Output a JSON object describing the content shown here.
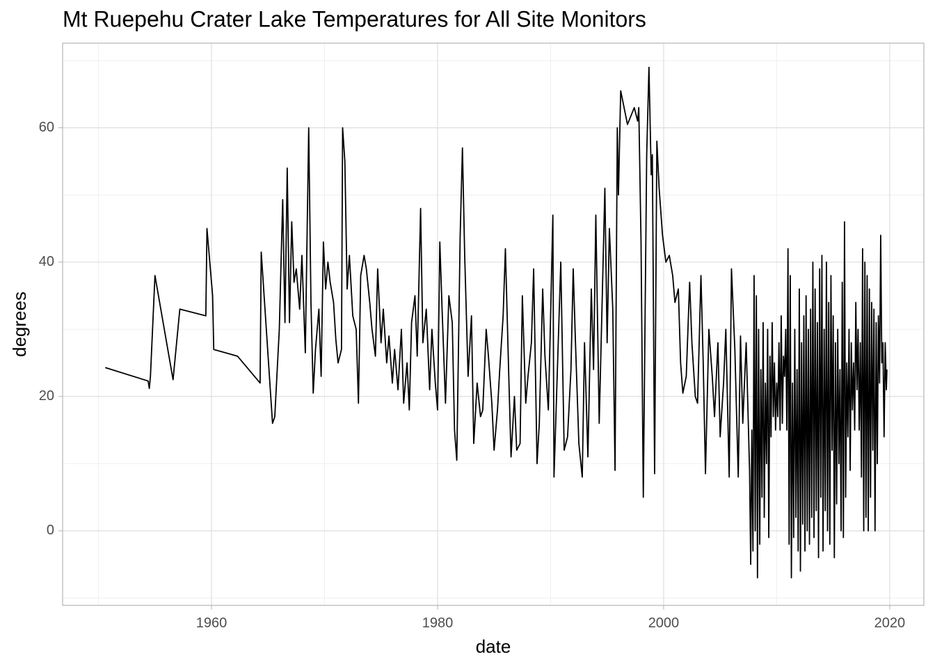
{
  "chart_data": {
    "type": "line",
    "title": "Mt Ruepehu Crater Lake Temperatures for All Site Monitors",
    "xlabel": "date",
    "ylabel": "degrees",
    "xlim": [
      1946.83,
      2023.02
    ],
    "ylim": [
      -11.1,
      72.6
    ],
    "xticks": [
      1960,
      1980,
      2000,
      2020
    ],
    "yticks": [
      0,
      20,
      40,
      60
    ],
    "x_minor_ticks": [
      1950,
      1970,
      1990,
      2010
    ],
    "y_minor_ticks": [
      -10,
      10,
      30,
      50,
      70
    ],
    "grid": true,
    "color": "#000000",
    "x": [
      1950.6,
      1954.4,
      1954.5,
      1954.6,
      1955,
      1956.6,
      1957.2,
      1959.5,
      1959.6,
      1960.1,
      1960.2,
      1962.3,
      1964.3,
      1964.4,
      1965.4,
      1965.6,
      1966,
      1966.3,
      1966.5,
      1966.7,
      1966.9,
      1967.1,
      1967.3,
      1967.5,
      1967.8,
      1968,
      1968.3,
      1968.6,
      1968.8,
      1969,
      1969.2,
      1969.5,
      1969.7,
      1969.9,
      1970.1,
      1970.3,
      1970.5,
      1970.8,
      1971,
      1971.2,
      1971.5,
      1971.6,
      1971.8,
      1972,
      1972.2,
      1972.5,
      1972.8,
      1973,
      1973.2,
      1973.5,
      1973.7,
      1974,
      1974.2,
      1974.5,
      1974.7,
      1975,
      1975.2,
      1975.5,
      1975.7,
      1976,
      1976.2,
      1976.5,
      1976.8,
      1977,
      1977.3,
      1977.5,
      1977.7,
      1978,
      1978.2,
      1978.5,
      1978.7,
      1979,
      1979.3,
      1979.5,
      1979.8,
      1980,
      1980.2,
      1980.4,
      1980.7,
      1981,
      1981.3,
      1981.5,
      1981.7,
      1982,
      1982.2,
      1982.4,
      1982.7,
      1983,
      1983.2,
      1983.5,
      1983.8,
      1984,
      1984.3,
      1984.5,
      1984.8,
      1985,
      1985.3,
      1985.5,
      1985.8,
      1986,
      1986.3,
      1986.5,
      1986.8,
      1987,
      1987.3,
      1987.5,
      1987.8,
      1988,
      1988.3,
      1988.5,
      1988.8,
      1989,
      1989.3,
      1989.5,
      1989.8,
      1990,
      1990.2,
      1990.3,
      1990.6,
      1990.9,
      1991.2,
      1991.5,
      1991.8,
      1992,
      1992.2,
      1992.5,
      1992.8,
      1993,
      1993.3,
      1993.6,
      1993.8,
      1994,
      1994.3,
      1994.6,
      1994.8,
      1995,
      1995.2,
      1995.5,
      1995.7,
      1995.9,
      1996,
      1996.2,
      1996.8,
      1997.4,
      1997.7,
      1997.8,
      1998,
      1998.2,
      1998.5,
      1998.7,
      1998.9,
      1999,
      1999.2,
      1999.4,
      1999.6,
      1999.9,
      2000.2,
      2000.5,
      2000.8,
      2001,
      2001.3,
      2001.5,
      2001.7,
      2002,
      2002.3,
      2002.5,
      2002.8,
      2003,
      2003.3,
      2003.5,
      2003.7,
      2004,
      2004.3,
      2004.5,
      2004.8,
      2005,
      2005.3,
      2005.5,
      2005.8,
      2006,
      2006.3,
      2006.6,
      2006.8,
      2007,
      2007.3,
      2007.6,
      2007.7,
      2007.8,
      2007.9,
      2008.0,
      2008.1,
      2008.2,
      2008.3,
      2008.4,
      2008.5,
      2008.6,
      2008.7,
      2008.8,
      2008.9,
      2009.0,
      2009.1,
      2009.2,
      2009.3,
      2009.4,
      2009.5,
      2009.6,
      2009.7,
      2009.8,
      2009.9,
      2010.0,
      2010.1,
      2010.2,
      2010.3,
      2010.4,
      2010.5,
      2010.6,
      2010.7,
      2010.8,
      2010.9,
      2011.0,
      2011.1,
      2011.2,
      2011.3,
      2011.4,
      2011.5,
      2011.6,
      2011.7,
      2011.8,
      2011.9,
      2012.0,
      2012.1,
      2012.2,
      2012.3,
      2012.4,
      2012.5,
      2012.6,
      2012.7,
      2012.8,
      2012.9,
      2013.0,
      2013.1,
      2013.2,
      2013.3,
      2013.4,
      2013.5,
      2013.6,
      2013.7,
      2013.8,
      2013.9,
      2014.0,
      2014.1,
      2014.2,
      2014.3,
      2014.4,
      2014.5,
      2014.6,
      2014.7,
      2014.8,
      2014.9,
      2015.0,
      2015.1,
      2015.2,
      2015.3,
      2015.4,
      2015.5,
      2015.6,
      2015.7,
      2015.8,
      2015.9,
      2016.0,
      2016.1,
      2016.2,
      2016.3,
      2016.4,
      2016.5,
      2016.6,
      2016.7,
      2016.8,
      2016.9,
      2017.0,
      2017.1,
      2017.2,
      2017.3,
      2017.4,
      2017.5,
      2017.6,
      2017.7,
      2017.8,
      2017.9,
      2018.0,
      2018.1,
      2018.2,
      2018.3,
      2018.4,
      2018.5,
      2018.6,
      2018.7,
      2018.8,
      2018.9,
      2019.0,
      2019.1,
      2019.2,
      2019.3,
      2019.4,
      2019.5,
      2019.6,
      2019.7,
      2019.75
    ],
    "values": [
      24.3,
      22.3,
      21.2,
      23,
      38,
      22.5,
      33,
      32,
      45,
      35,
      27,
      26,
      22,
      41.5,
      16,
      17,
      30,
      49.3,
      31,
      54,
      31,
      46,
      37,
      39,
      33,
      41,
      26.5,
      60,
      34,
      20.5,
      27,
      33,
      23,
      43,
      36,
      40,
      37,
      34,
      28.5,
      25,
      27,
      60,
      55,
      36,
      41,
      32,
      30,
      19,
      38,
      41,
      39,
      34,
      30,
      26,
      39,
      28,
      33,
      25,
      29,
      22,
      27,
      21,
      30,
      19,
      25,
      18,
      31,
      35,
      26,
      48,
      28,
      33,
      21,
      30,
      22,
      18,
      43,
      33,
      19,
      35,
      31,
      15,
      10.5,
      44,
      57,
      41,
      23,
      32,
      13,
      22,
      17,
      18,
      30,
      26,
      19,
      12,
      18,
      24,
      32,
      42,
      23,
      11,
      20,
      12,
      13,
      35,
      19,
      23,
      28,
      39,
      10,
      16,
      36,
      26,
      18,
      32,
      47,
      8,
      24,
      40,
      12,
      14,
      24,
      39,
      28,
      13,
      8,
      28,
      11,
      36,
      24,
      47,
      16,
      37,
      51,
      28,
      45,
      33,
      9,
      60,
      50,
      65.5,
      60.5,
      63,
      61,
      63,
      43,
      5,
      56,
      69,
      53,
      56,
      8.5,
      58,
      51,
      44,
      40,
      41,
      38,
      34,
      36,
      25,
      20.5,
      23,
      37,
      28,
      20,
      19,
      38,
      25,
      8.5,
      30,
      23,
      17,
      28,
      14,
      22,
      30,
      8,
      39,
      27,
      8,
      29,
      16,
      28,
      9,
      -5,
      15,
      -3,
      38,
      0,
      35,
      -7,
      30,
      -2,
      24,
      5,
      31,
      2,
      22,
      10,
      30,
      -1,
      26,
      14,
      31,
      17,
      25,
      15,
      22,
      17,
      28,
      15,
      32,
      16,
      26,
      23,
      30,
      15,
      42,
      -2,
      38,
      -7,
      22,
      -1,
      30,
      2,
      24,
      -3,
      36,
      -6,
      28,
      1,
      32,
      -3,
      35,
      0,
      30,
      -2,
      33,
      2,
      40,
      -1,
      36,
      3,
      31,
      -4,
      39,
      5,
      41,
      -3,
      30,
      3,
      40,
      0,
      34,
      -2,
      38,
      12,
      32,
      -4,
      28,
      4,
      30,
      10,
      24,
      0,
      37,
      -1,
      46,
      5,
      25,
      14,
      30,
      9,
      28,
      18,
      25,
      15,
      34,
      21,
      30,
      15,
      28,
      8,
      42,
      0,
      40,
      2,
      38,
      0,
      36,
      5,
      34,
      12,
      33,
      0,
      31,
      10,
      32,
      22,
      44,
      25,
      28,
      14,
      28,
      21,
      24
    ]
  }
}
